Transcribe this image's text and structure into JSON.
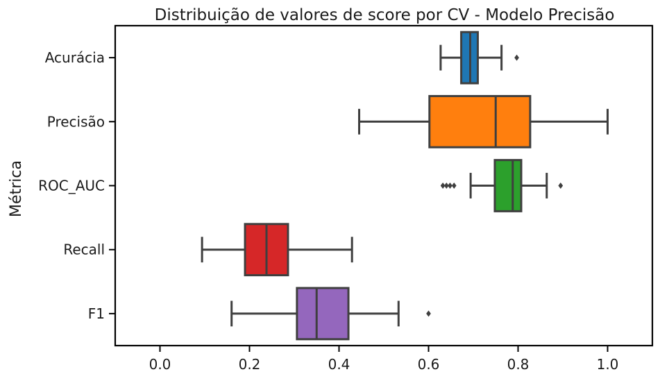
{
  "chart_data": {
    "type": "box",
    "orientation": "horizontal",
    "title": "Distribuição de valores de score por CV - Modelo Precisão",
    "xlabel": "",
    "ylabel": "Métrica",
    "xlim": [
      -0.1,
      1.1
    ],
    "xticks": [
      0.0,
      0.2,
      0.4,
      0.6,
      0.8,
      1.0
    ],
    "xtick_labels": [
      "0.0",
      "0.2",
      "0.4",
      "0.6",
      "0.8",
      "1.0"
    ],
    "grid": false,
    "categories": [
      "Acurácia",
      "Precisão",
      "ROC_AUC",
      "Recall",
      "F1"
    ],
    "boxes": [
      {
        "category": "Acurácia",
        "color": "#1f77b4",
        "whisker_low": 0.627,
        "q1": 0.673,
        "median": 0.693,
        "q3": 0.71,
        "whisker_high": 0.763,
        "outliers": [
          0.797
        ]
      },
      {
        "category": "Precisão",
        "color": "#ff7f0e",
        "whisker_low": 0.445,
        "q1": 0.602,
        "median": 0.75,
        "q3": 0.827,
        "whisker_high": 1.0,
        "outliers": []
      },
      {
        "category": "ROC_AUC",
        "color": "#2ca02c",
        "whisker_low": 0.694,
        "q1": 0.748,
        "median": 0.788,
        "q3": 0.807,
        "whisker_high": 0.864,
        "outliers": [
          0.632,
          0.64,
          0.648,
          0.657,
          0.895
        ]
      },
      {
        "category": "Recall",
        "color": "#d62728",
        "whisker_low": 0.094,
        "q1": 0.19,
        "median": 0.238,
        "q3": 0.286,
        "whisker_high": 0.429,
        "outliers": []
      },
      {
        "category": "F1",
        "color": "#9467bd",
        "whisker_low": 0.16,
        "q1": 0.306,
        "median": 0.35,
        "q3": 0.421,
        "whisker_high": 0.533,
        "outliers": [
          0.6
        ]
      }
    ]
  }
}
